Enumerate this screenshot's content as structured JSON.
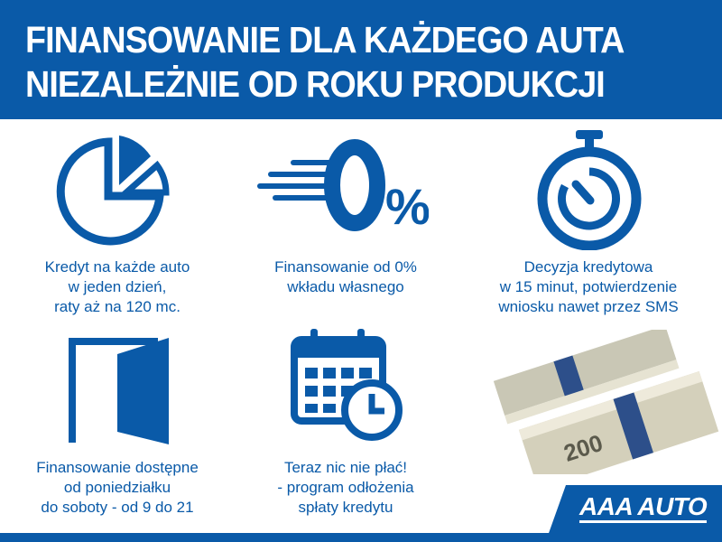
{
  "header": {
    "line1": "FINANSOWANIE DLA KAŻDEGO AUTA",
    "line2": "NIEZALEŻNIE OD ROKU PRODUKCJI"
  },
  "features": [
    {
      "icon": "pie-chart-icon",
      "lines": [
        "Kredyt na każde auto",
        "w jeden dzień,",
        "raty aż na 120 mc."
      ]
    },
    {
      "icon": "zero-percent-icon",
      "lines": [
        "Finansowanie od 0%",
        "wkładu własnego"
      ]
    },
    {
      "icon": "stopwatch-icon",
      "lines": [
        "Decyzja kredytowa",
        "w 15 minut, potwierdzenie",
        "wniosku nawet przez SMS"
      ]
    },
    {
      "icon": "door-icon",
      "lines": [
        "Finansowanie dostępne",
        "od poniedziałku",
        "do soboty - od 9 do 21"
      ]
    },
    {
      "icon": "calendar-clock-icon",
      "lines": [
        "Teraz nic nie płać!",
        "- program odłożenia",
        "spłaty kredytu"
      ]
    }
  ],
  "percent_label": "0%",
  "banknote_value": "200",
  "logo": "AAA AUTO",
  "colors": {
    "brand": "#0a5aa8"
  }
}
